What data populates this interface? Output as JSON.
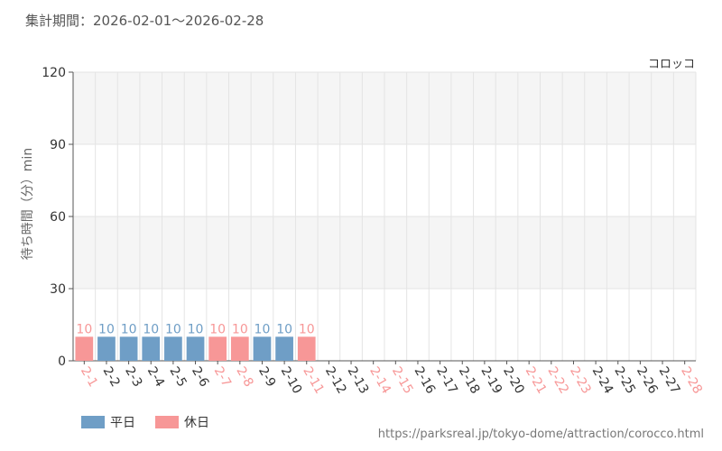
{
  "header": {
    "period_label": "集計期間：2026-02-01〜2026-02-28"
  },
  "footer": {
    "source_url": "https://parksreal.jp/tokyo-dome/attraction/corocco.html"
  },
  "colors": {
    "weekday": "#6f9ec6",
    "holiday": "#f79797",
    "grid": "#e4e4e4",
    "band": "#f5f5f5",
    "axis": "#555555",
    "tick_text": "#333333"
  },
  "chart_data": {
    "type": "bar",
    "series_name": "コロッコ",
    "ylabel": "待ち時間（分）min",
    "ylim": [
      0,
      120
    ],
    "yticks": [
      0,
      30,
      60,
      90,
      120
    ],
    "grid": true,
    "legend_position": "bottom-left",
    "categories": [
      "2-1",
      "2-2",
      "2-3",
      "2-4",
      "2-5",
      "2-6",
      "2-7",
      "2-8",
      "2-9",
      "2-10",
      "2-11",
      "2-12",
      "2-13",
      "2-14",
      "2-15",
      "2-16",
      "2-17",
      "2-18",
      "2-19",
      "2-20",
      "2-21",
      "2-22",
      "2-23",
      "2-24",
      "2-25",
      "2-26",
      "2-27",
      "2-28"
    ],
    "values": [
      10,
      10,
      10,
      10,
      10,
      10,
      10,
      10,
      10,
      10,
      10,
      null,
      null,
      null,
      null,
      null,
      null,
      null,
      null,
      null,
      null,
      null,
      null,
      null,
      null,
      null,
      null,
      null
    ],
    "day_type": [
      "holiday",
      "weekday",
      "weekday",
      "weekday",
      "weekday",
      "weekday",
      "holiday",
      "holiday",
      "weekday",
      "weekday",
      "holiday",
      "weekday",
      "weekday",
      "holiday",
      "holiday",
      "weekday",
      "weekday",
      "weekday",
      "weekday",
      "weekday",
      "holiday",
      "holiday",
      "holiday",
      "weekday",
      "weekday",
      "weekday",
      "weekday",
      "holiday"
    ],
    "legend": [
      {
        "key": "weekday",
        "label": "平日"
      },
      {
        "key": "holiday",
        "label": "休日"
      }
    ]
  }
}
